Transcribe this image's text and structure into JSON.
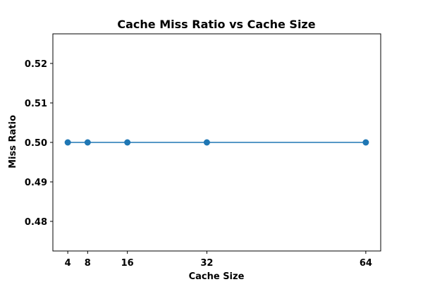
{
  "chart_data": {
    "type": "line",
    "title": "Cache Miss Ratio vs Cache Size",
    "xlabel": "Cache Size",
    "ylabel": "Miss Ratio",
    "x": [
      4,
      8,
      16,
      32,
      64
    ],
    "series": [
      {
        "name": "Miss Ratio",
        "values": [
          0.5,
          0.5,
          0.5,
          0.5,
          0.5
        ],
        "color": "#1f77b4"
      }
    ],
    "xticks": [
      4,
      8,
      16,
      32,
      64
    ],
    "xtick_labels": [
      "4",
      "8",
      "16",
      "32",
      "64"
    ],
    "yticks": [
      0.48,
      0.49,
      0.5,
      0.51,
      0.52
    ],
    "ytick_labels": [
      "0.48",
      "0.49",
      "0.50",
      "0.51",
      "0.52"
    ],
    "xlim": [
      1,
      67
    ],
    "ylim": [
      0.4725,
      0.5275
    ],
    "grid": false,
    "legend": "none"
  }
}
